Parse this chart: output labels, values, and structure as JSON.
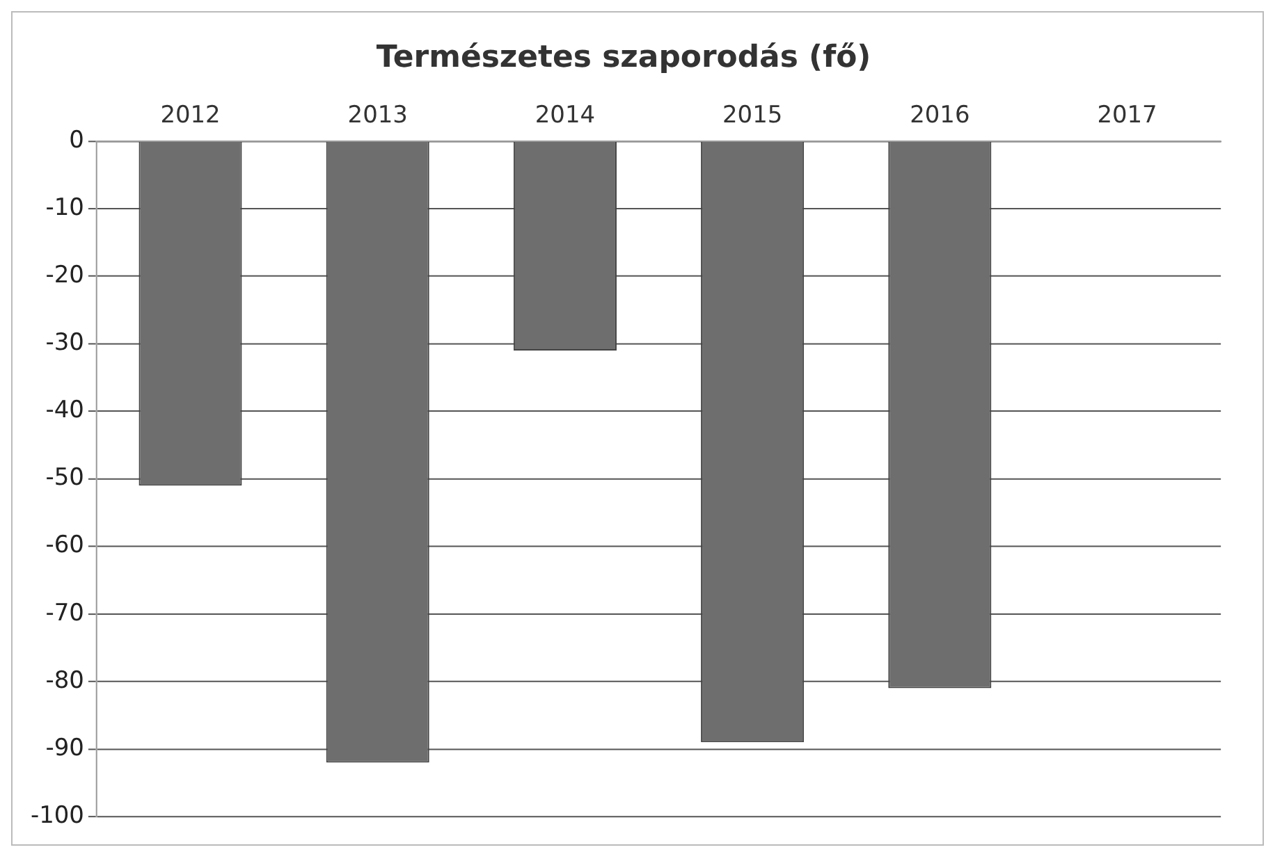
{
  "chart_data": {
    "type": "bar",
    "title": "Természetes szaporodás (fő)",
    "categories": [
      "2012",
      "2013",
      "2014",
      "2015",
      "2016",
      "2017"
    ],
    "series": [
      {
        "color": "#6e6e6e",
        "values": [
          -51,
          -92,
          -31,
          -89,
          -81,
          null
        ]
      }
    ],
    "ylim": [
      -100,
      0
    ],
    "yticks": [
      0,
      -10,
      -20,
      -30,
      -40,
      -50,
      -60,
      -70,
      -80,
      -90,
      -100
    ],
    "grid": "y",
    "legend": false
  }
}
